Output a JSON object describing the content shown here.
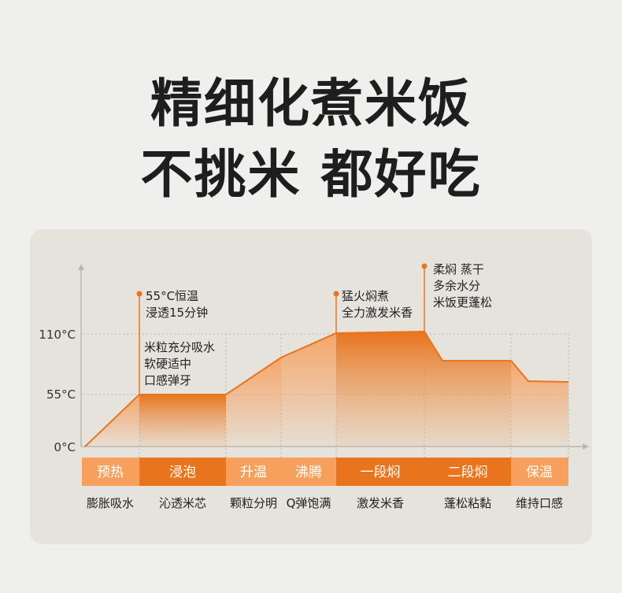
{
  "headline": {
    "line1": "精细化煮米饭",
    "line2": "不挑米 都好吃"
  },
  "chart_data": {
    "type": "area",
    "title": "",
    "xlabel": "",
    "ylabel": "",
    "y_ticks": [
      "110°C",
      "55°C",
      "0°C"
    ],
    "stages": [
      {
        "label": "预热",
        "desc": "膨胀吸水"
      },
      {
        "label": "浸泡",
        "desc": "沁透米芯"
      },
      {
        "label": "升温",
        "desc": "颗粒分明"
      },
      {
        "label": "沸腾",
        "desc": "Q弹饱满"
      },
      {
        "label": "一段焖",
        "desc": "激发米香"
      },
      {
        "label": "二段焖",
        "desc": "蓬松粘黏"
      },
      {
        "label": "保温",
        "desc": "维持口感"
      }
    ],
    "annotations": [
      {
        "lines": [
          "55°C恒温",
          "浸透15分钟"
        ]
      },
      {
        "lines": [
          "米粒充分吸水",
          "软硬适中",
          "口感弹牙"
        ]
      },
      {
        "lines": [
          "猛火焖煮",
          "全力激发米香"
        ]
      },
      {
        "lines": [
          "柔焖 蒸干",
          "多余水分",
          "米饭更蓬松"
        ]
      }
    ],
    "colors": {
      "accent": "#e8741e",
      "light": "#f7a966",
      "phase_dark": "#e8741e",
      "phase_light": "#f7a05d"
    }
  }
}
